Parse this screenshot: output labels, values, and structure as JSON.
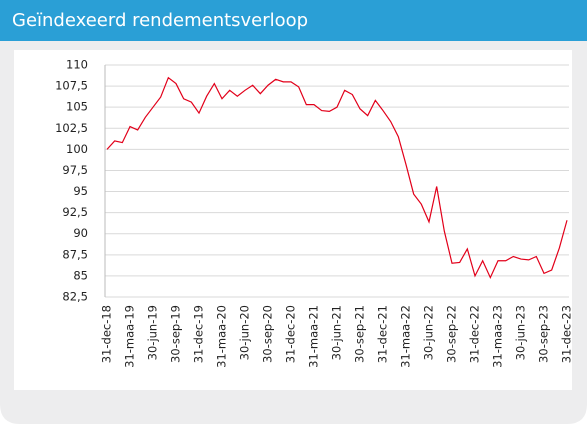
{
  "chart_data": {
    "type": "line",
    "title": "Geïndexeerd rendementsverloop",
    "categories": [
      "31-dec-18",
      null,
      null,
      "31-maa-19",
      null,
      null,
      "30-jun-19",
      null,
      null,
      "30-sep-19",
      null,
      null,
      "31-dec-19",
      null,
      null,
      "31-maa-20",
      null,
      null,
      "30-jun-20",
      null,
      null,
      "30-sep-20",
      null,
      null,
      "31-dec-20",
      null,
      null,
      "31-maa-21",
      null,
      null,
      "30-jun-21",
      null,
      null,
      "30-sep-21",
      null,
      null,
      "31-dec-21",
      null,
      null,
      "31-maa-22",
      null,
      null,
      "30-jun-22",
      null,
      null,
      "30-sep-22",
      null,
      null,
      "31-dec-22",
      null,
      null,
      "31-maa-23",
      null,
      null,
      "30-jun-23",
      null,
      null,
      "30-sep-23",
      null,
      null,
      "31-dec-23"
    ],
    "values": [
      100,
      101,
      100.8,
      102.7,
      102.3,
      103.8,
      105,
      106.2,
      108.5,
      107.8,
      106,
      105.6,
      104.3,
      106.3,
      107.8,
      106,
      107,
      106.3,
      107,
      107.6,
      106.6,
      107.6,
      108.3,
      108,
      108,
      107.4,
      105.3,
      105.3,
      104.6,
      104.5,
      105,
      107,
      106.5,
      104.8,
      104,
      105.8,
      104.6,
      103.3,
      101.5,
      98.2,
      94.7,
      93.5,
      91.4,
      95.6,
      90.3,
      86.5,
      86.6,
      88.2,
      85,
      86.8,
      84.8,
      86.8,
      86.8,
      87.3,
      87,
      86.9,
      87.3,
      85.3,
      85.7,
      88.3,
      91.6
    ],
    "color": "#e2001a",
    "ylim": [
      82.5,
      110
    ],
    "yticks": [
      {
        "value": 82.5,
        "label": "82,5"
      },
      85,
      {
        "value": 87.5,
        "label": "87,5"
      },
      90,
      {
        "value": 92.5,
        "label": "92,5"
      },
      95,
      {
        "value": 97.5,
        "label": "97,5"
      },
      100,
      {
        "value": 102.5,
        "label": "102,5"
      },
      105,
      {
        "value": 107.5,
        "label": "107,5"
      },
      110
    ],
    "grid": true
  }
}
